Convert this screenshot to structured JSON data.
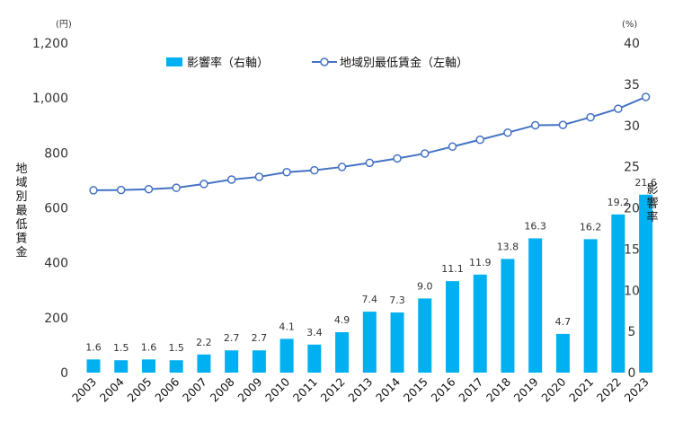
{
  "chart_data": {
    "type": "bar+line",
    "x": [
      "2003",
      "2004",
      "2005",
      "2006",
      "2007",
      "2008",
      "2009",
      "2010",
      "2011",
      "2012",
      "2013",
      "2014",
      "2015",
      "2016",
      "2017",
      "2018",
      "2019",
      "2020",
      "2021",
      "2022",
      "2023"
    ],
    "series": [
      {
        "name": "影響率（右軸）",
        "type": "bar",
        "axis": "right",
        "color": "#00b0f0",
        "values": [
          1.6,
          1.5,
          1.6,
          1.5,
          2.2,
          2.7,
          2.7,
          4.1,
          3.4,
          4.9,
          7.4,
          7.3,
          9.0,
          11.1,
          11.9,
          13.8,
          16.3,
          4.7,
          16.2,
          19.2,
          21.6
        ],
        "labels": [
          "1.6",
          "1.5",
          "1.6",
          "1.5",
          "2.2",
          "2.7",
          "2.7",
          "4.1",
          "3.4",
          "4.9",
          "7.4",
          "7.3",
          "9.0",
          "11.1",
          "11.9",
          "13.8",
          "16.3",
          "4.7",
          "16.2",
          "19.2",
          "21.6"
        ]
      },
      {
        "name": "地域別最低賃金（左軸）",
        "type": "line",
        "axis": "left",
        "color": "#4472c4",
        "values": [
          664,
          665,
          668,
          673,
          687,
          703,
          713,
          730,
          737,
          749,
          764,
          780,
          798,
          823,
          848,
          874,
          901,
          902,
          930,
          961,
          1004
        ]
      }
    ],
    "y_left": {
      "label": "地域別最低賃金",
      "unit": "(円)",
      "range": [
        0,
        1200
      ],
      "ticks": [
        "0",
        "200",
        "400",
        "600",
        "800",
        "1,000",
        "1,200"
      ]
    },
    "y_right": {
      "label": "影響率",
      "unit": "(%)",
      "range": [
        0,
        40
      ],
      "ticks": [
        "0",
        "5",
        "10",
        "15",
        "20",
        "25",
        "30",
        "35",
        "40"
      ]
    },
    "legend_position": "top-center",
    "grid": false
  }
}
